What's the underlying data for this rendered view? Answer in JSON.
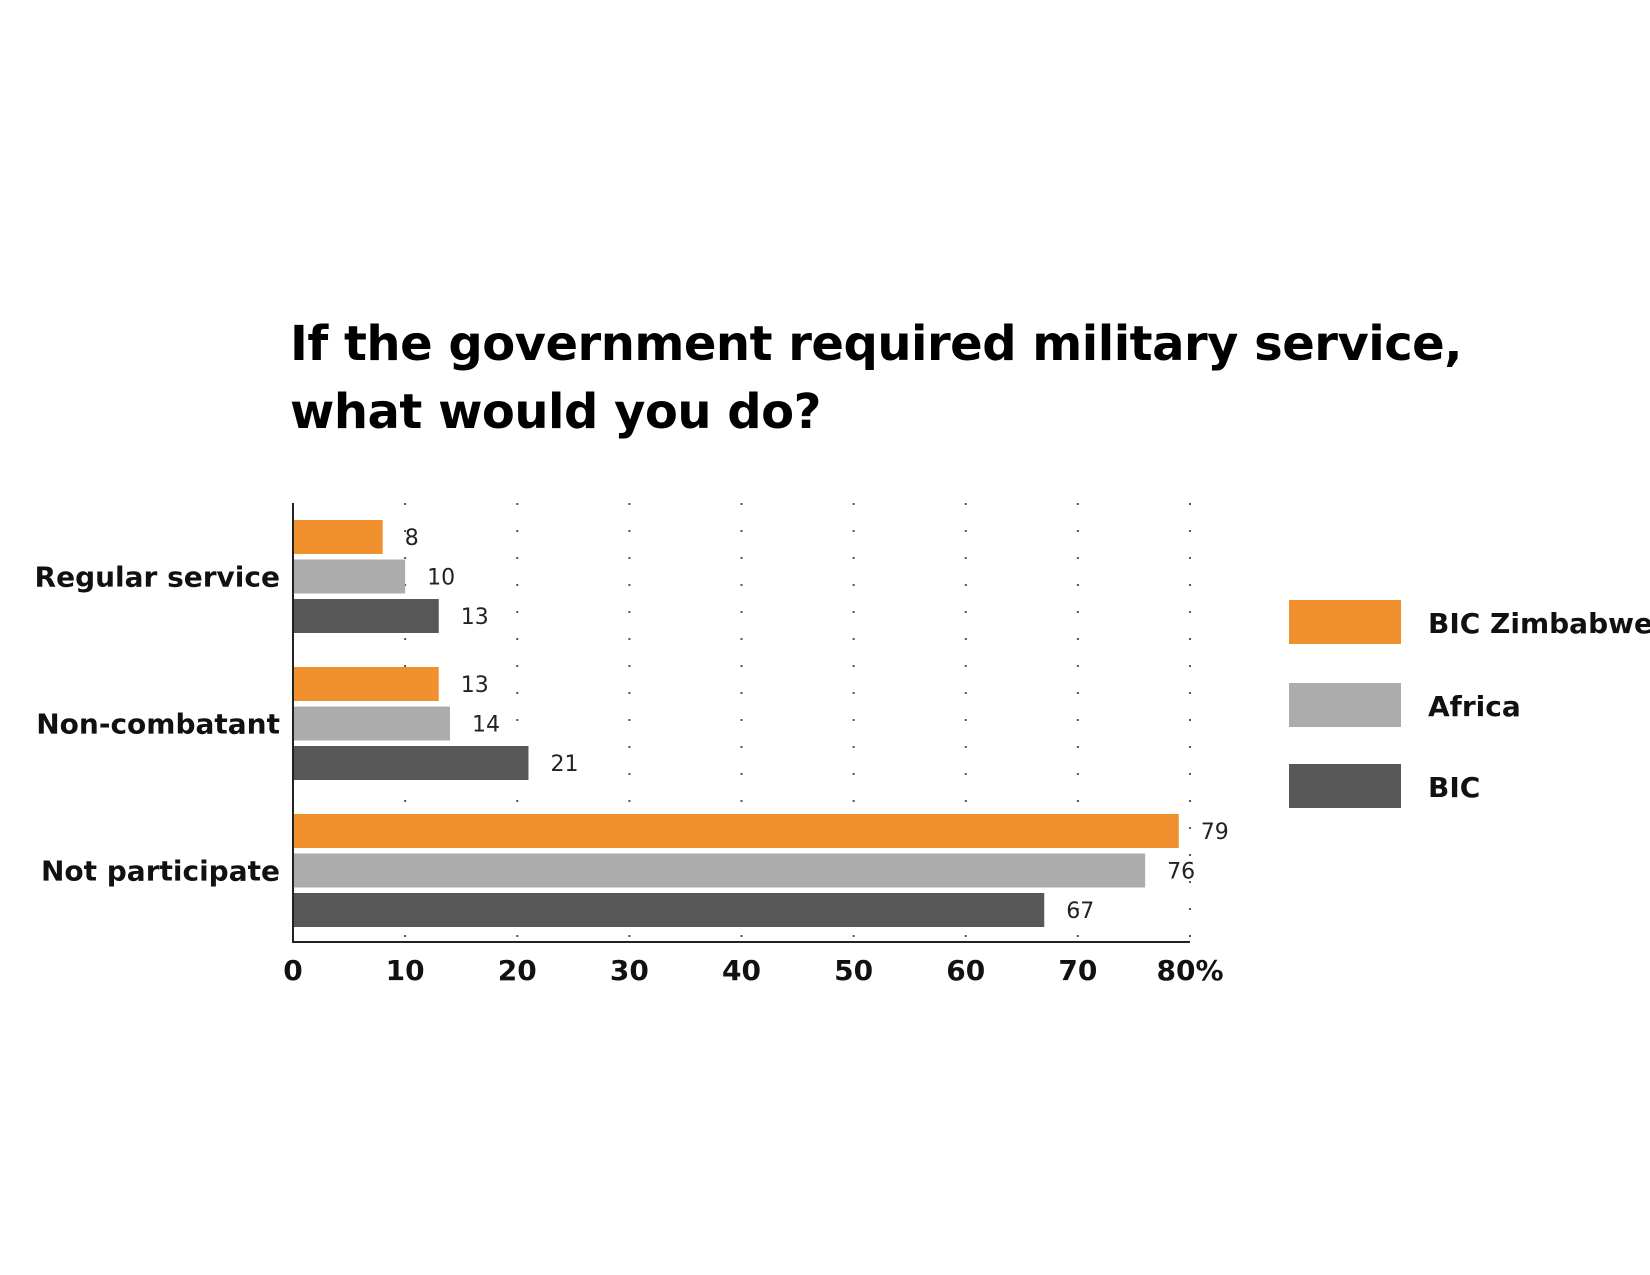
{
  "chart_data": {
    "type": "bar",
    "orientation": "horizontal",
    "title_lines": [
      "If the government required military service,",
      "what would you do?"
    ],
    "categories": [
      "Regular service",
      "Non-combatant",
      "Not participate"
    ],
    "series": [
      {
        "name": "BIC Zimbabwe",
        "color": "#f0902f",
        "values": [
          8,
          13,
          79
        ]
      },
      {
        "name": "Africa",
        "color": "#acacac",
        "values": [
          10,
          14,
          76
        ]
      },
      {
        "name": "BIC",
        "color": "#575757",
        "values": [
          13,
          21,
          67
        ]
      }
    ],
    "x_ticks": [
      "0",
      "10",
      "20",
      "30",
      "40",
      "50",
      "60",
      "70",
      "80%"
    ],
    "xlim": [
      0,
      80
    ],
    "grid": "vertical-dotted",
    "legend_position": "right"
  }
}
